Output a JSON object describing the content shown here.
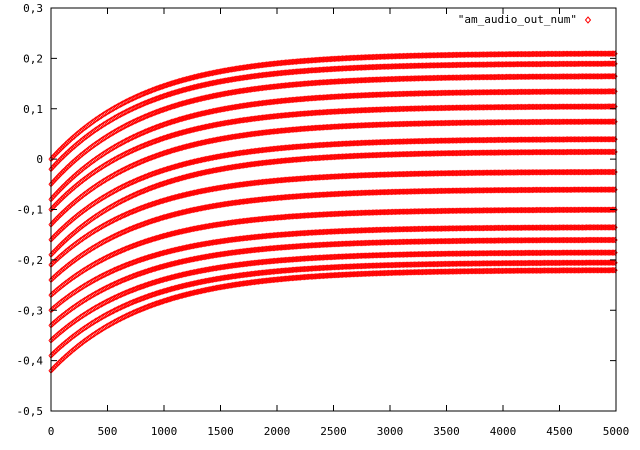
{
  "chart_data": {
    "type": "scatter",
    "title": "",
    "xlabel": "",
    "ylabel": "",
    "xlim": [
      0,
      5000
    ],
    "ylim": [
      -0.5,
      0.3
    ],
    "xticks": [
      0,
      500,
      1000,
      1500,
      2000,
      2500,
      3000,
      3500,
      4000,
      4500,
      5000
    ],
    "yticks": [
      -0.5,
      -0.4,
      -0.3,
      -0.2,
      -0.1,
      0,
      0.1,
      0.2,
      0.3
    ],
    "xtick_labels": [
      "0",
      "500",
      "1000",
      "1500",
      "2000",
      "2500",
      "3000",
      "3500",
      "4000",
      "4500",
      "5000"
    ],
    "ytick_labels": [
      "-0,5",
      "-0,4",
      "-0,3",
      "-0,2",
      "-0,1",
      "0",
      "0,1",
      "0,2",
      "0,3"
    ],
    "grid": false,
    "legend_position": "top-right",
    "series": [
      {
        "name": "\"am_audio_out_num\"",
        "color": "#ff0000",
        "marker": "diamond",
        "model": "y = final + (start - final) * exp(-x / tau)",
        "tau": 850,
        "curves": [
          {
            "start": 0.0,
            "final": 0.21
          },
          {
            "start": -0.02,
            "final": 0.19
          },
          {
            "start": -0.05,
            "final": 0.165
          },
          {
            "start": -0.08,
            "final": 0.135
          },
          {
            "start": -0.1,
            "final": 0.105
          },
          {
            "start": -0.13,
            "final": 0.075
          },
          {
            "start": -0.16,
            "final": 0.04
          },
          {
            "start": -0.19,
            "final": 0.015
          },
          {
            "start": -0.21,
            "final": -0.025
          },
          {
            "start": -0.24,
            "final": -0.06
          },
          {
            "start": -0.27,
            "final": -0.1
          },
          {
            "start": -0.3,
            "final": -0.135
          },
          {
            "start": -0.33,
            "final": -0.16
          },
          {
            "start": -0.36,
            "final": -0.185
          },
          {
            "start": -0.39,
            "final": -0.205
          },
          {
            "start": -0.42,
            "final": -0.22
          }
        ]
      }
    ]
  }
}
